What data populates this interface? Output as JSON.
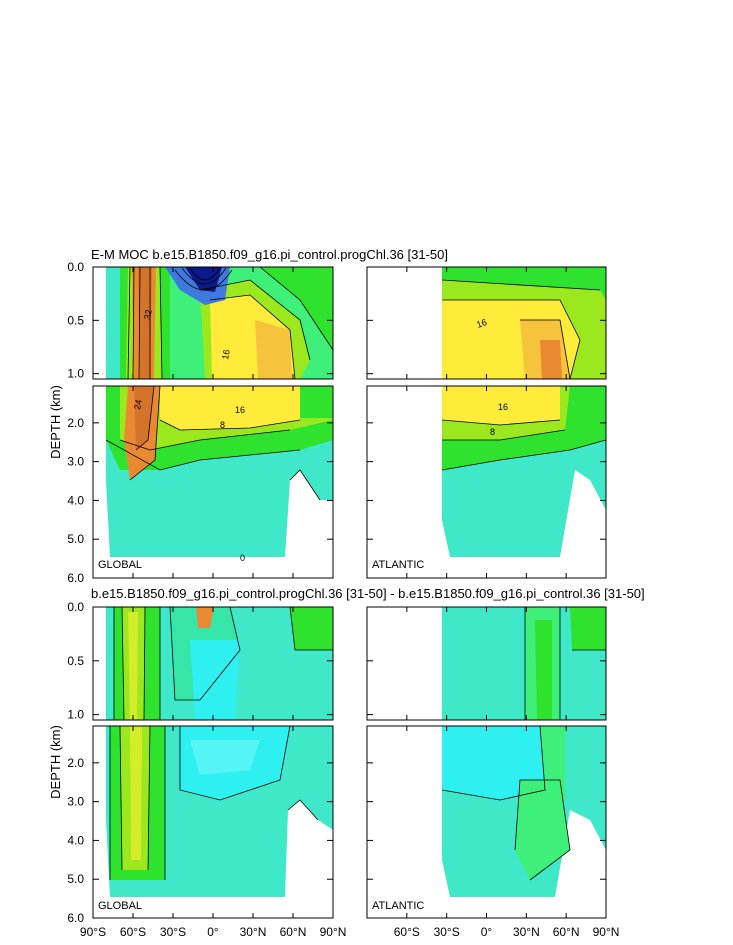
{
  "chart_data": {
    "type": "heatmap",
    "titles": {
      "top": "E-M MOC  b.e15.B1850.f09_g16.pi_control.progChl.36 [31-50]",
      "bottom": "b.e15.B1850.f09_g16.pi_control.progChl.36 [31-50] - b.e15.B1850.f09_g16.pi_control.36 [31-50]"
    },
    "ylabel": "DEPTH (km)",
    "x_ticks": [
      {
        "deg": -90,
        "label": "90°S"
      },
      {
        "deg": -60,
        "label": "60°S"
      },
      {
        "deg": -30,
        "label": "30°S"
      },
      {
        "deg": 0,
        "label": "0°"
      },
      {
        "deg": 30,
        "label": "30°N"
      },
      {
        "deg": 60,
        "label": "60°N"
      },
      {
        "deg": 90,
        "label": "90°N"
      }
    ],
    "xlim": [
      -90,
      90
    ],
    "y_upper_ticks": [
      {
        "v": 0.0,
        "label": "0.0"
      },
      {
        "v": 0.5,
        "label": "0.5"
      },
      {
        "v": 1.0,
        "label": "1.0"
      }
    ],
    "y_upper_range": [
      0,
      1.05
    ],
    "y_lower_ticks": [
      {
        "v": 2,
        "label": "2.0"
      },
      {
        "v": 3,
        "label": "3.0"
      },
      {
        "v": 4,
        "label": "4.0"
      },
      {
        "v": 5,
        "label": "5.0"
      },
      {
        "v": 6,
        "label": "6.0"
      }
    ],
    "y_lower_range": [
      1.05,
      6.0
    ],
    "panel_labels": {
      "global": "GLOBAL",
      "atlantic": "ATLANTIC"
    },
    "contour_labels": [
      "0",
      "8",
      "16",
      "24",
      "32"
    ],
    "colors": {
      "deep_blue": "#0a1a8c",
      "blue": "#3e79e0",
      "cyan_light": "#2ef0f0",
      "cyan": "#3fe8c8",
      "aqua_green": "#36e6a6",
      "green_light": "#3ef07a",
      "green": "#2ee22e",
      "lime": "#9be81e",
      "yellow_green": "#d4ec2a",
      "yellow": "#ffec3a",
      "orange_yellow": "#f6c43c",
      "orange": "#e98a32",
      "orange_dark": "#d4742a"
    }
  }
}
